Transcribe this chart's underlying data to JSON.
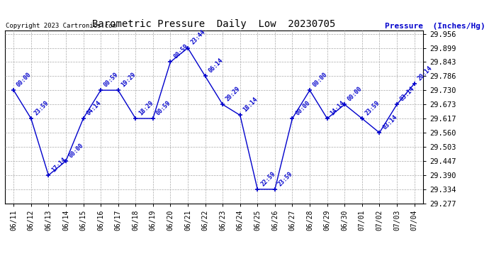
{
  "title": "Barometric Pressure  Daily  Low  20230705",
  "ylabel": "Pressure  (Inches/Hg)",
  "copyright": "Copyright 2023 Cartronics.com",
  "line_color": "#0000cc",
  "bg_color": "#ffffff",
  "grid_color": "#aaaaaa",
  "dates": [
    "06/11",
    "06/12",
    "06/13",
    "06/14",
    "06/15",
    "06/16",
    "06/17",
    "06/18",
    "06/19",
    "06/20",
    "06/21",
    "06/22",
    "06/23",
    "06/24",
    "06/25",
    "06/26",
    "06/27",
    "06/28",
    "06/29",
    "06/30",
    "07/01",
    "07/02",
    "07/03",
    "07/04"
  ],
  "values": [
    29.73,
    29.617,
    29.39,
    29.447,
    29.617,
    29.73,
    29.73,
    29.617,
    29.617,
    29.843,
    29.899,
    29.786,
    29.673,
    29.63,
    29.334,
    29.334,
    29.617,
    29.73,
    29.617,
    29.673,
    29.617,
    29.56,
    29.673,
    29.756
  ],
  "time_labels": [
    "00:00",
    "23:59",
    "17:14",
    "00:00",
    "04:14",
    "00:59",
    "19:29",
    "18:29",
    "00:59",
    "00:59",
    "23:44",
    "06:14",
    "20:29",
    "18:14",
    "22:59",
    "23:59",
    "00:00",
    "00:00",
    "14:14",
    "00:00",
    "23:59",
    "03:14",
    "03:14",
    "20:14"
  ],
  "ylim_min": 29.277,
  "ylim_max": 29.9685,
  "ytick_values": [
    29.277,
    29.334,
    29.39,
    29.447,
    29.503,
    29.56,
    29.617,
    29.673,
    29.73,
    29.786,
    29.843,
    29.899,
    29.956
  ]
}
